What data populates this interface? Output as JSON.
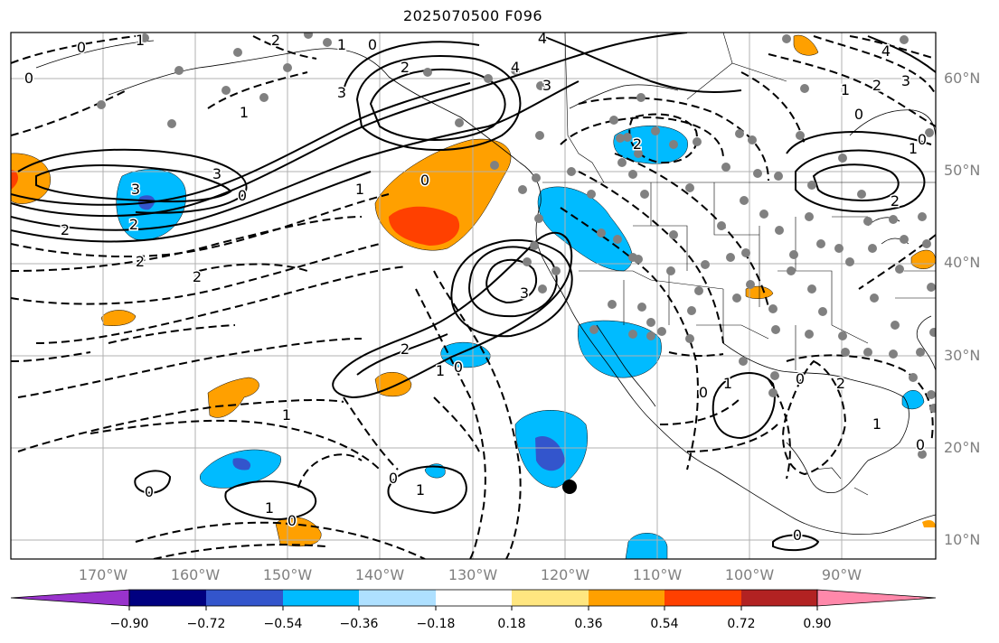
{
  "title": "2025070500 F096",
  "map": {
    "lat_labels": [
      "60°N",
      "50°N",
      "40°N",
      "30°N",
      "20°N",
      "10°N"
    ],
    "lon_labels": [
      "170°W",
      "160°W",
      "150°W",
      "140°W",
      "130°W",
      "120°W",
      "110°W",
      "100°W",
      "90°W"
    ],
    "contour_labels": [
      {
        "text": "0"
      },
      {
        "text": "1"
      },
      {
        "text": "2"
      },
      {
        "text": "0"
      },
      {
        "text": "1"
      },
      {
        "text": "0"
      },
      {
        "text": "4"
      },
      {
        "text": "3"
      },
      {
        "text": "2"
      },
      {
        "text": "3"
      },
      {
        "text": "1"
      },
      {
        "text": "4"
      },
      {
        "text": "3"
      },
      {
        "text": "2"
      },
      {
        "text": "0"
      },
      {
        "text": "1"
      },
      {
        "text": "0"
      },
      {
        "text": "2"
      },
      {
        "text": "2"
      },
      {
        "text": "2"
      },
      {
        "text": "3"
      },
      {
        "text": "3"
      },
      {
        "text": "2"
      },
      {
        "text": "1"
      },
      {
        "text": "0"
      },
      {
        "text": "1"
      },
      {
        "text": "0"
      },
      {
        "text": "1"
      },
      {
        "text": "0"
      },
      {
        "text": "1"
      },
      {
        "text": "0"
      },
      {
        "text": "0"
      },
      {
        "text": "1"
      },
      {
        "text": "0"
      },
      {
        "text": "2"
      },
      {
        "text": "1"
      },
      {
        "text": "0"
      },
      {
        "text": "2"
      },
      {
        "text": "0"
      },
      {
        "text": "0"
      },
      {
        "text": "2"
      },
      {
        "text": "3"
      },
      {
        "text": "1"
      },
      {
        "text": "1"
      },
      {
        "text": "4"
      },
      {
        "text": "2"
      },
      {
        "text": "0"
      }
    ],
    "colors": {
      "grid": "#b0b0b0",
      "contour": "#000000",
      "station_dot": "#808080"
    }
  },
  "colorbar": {
    "ticks": [
      "−0.90",
      "−0.72",
      "−0.54",
      "−0.36",
      "−0.18",
      "0.18",
      "0.36",
      "0.54",
      "0.72",
      "0.90"
    ],
    "colors": [
      "#9933cc",
      "#000080",
      "#3355cc",
      "#00bbff",
      "#aee0ff",
      "#ffffff",
      "#ffe680",
      "#ffa000",
      "#ff4000",
      "#b22222",
      "#ff88aa"
    ]
  }
}
